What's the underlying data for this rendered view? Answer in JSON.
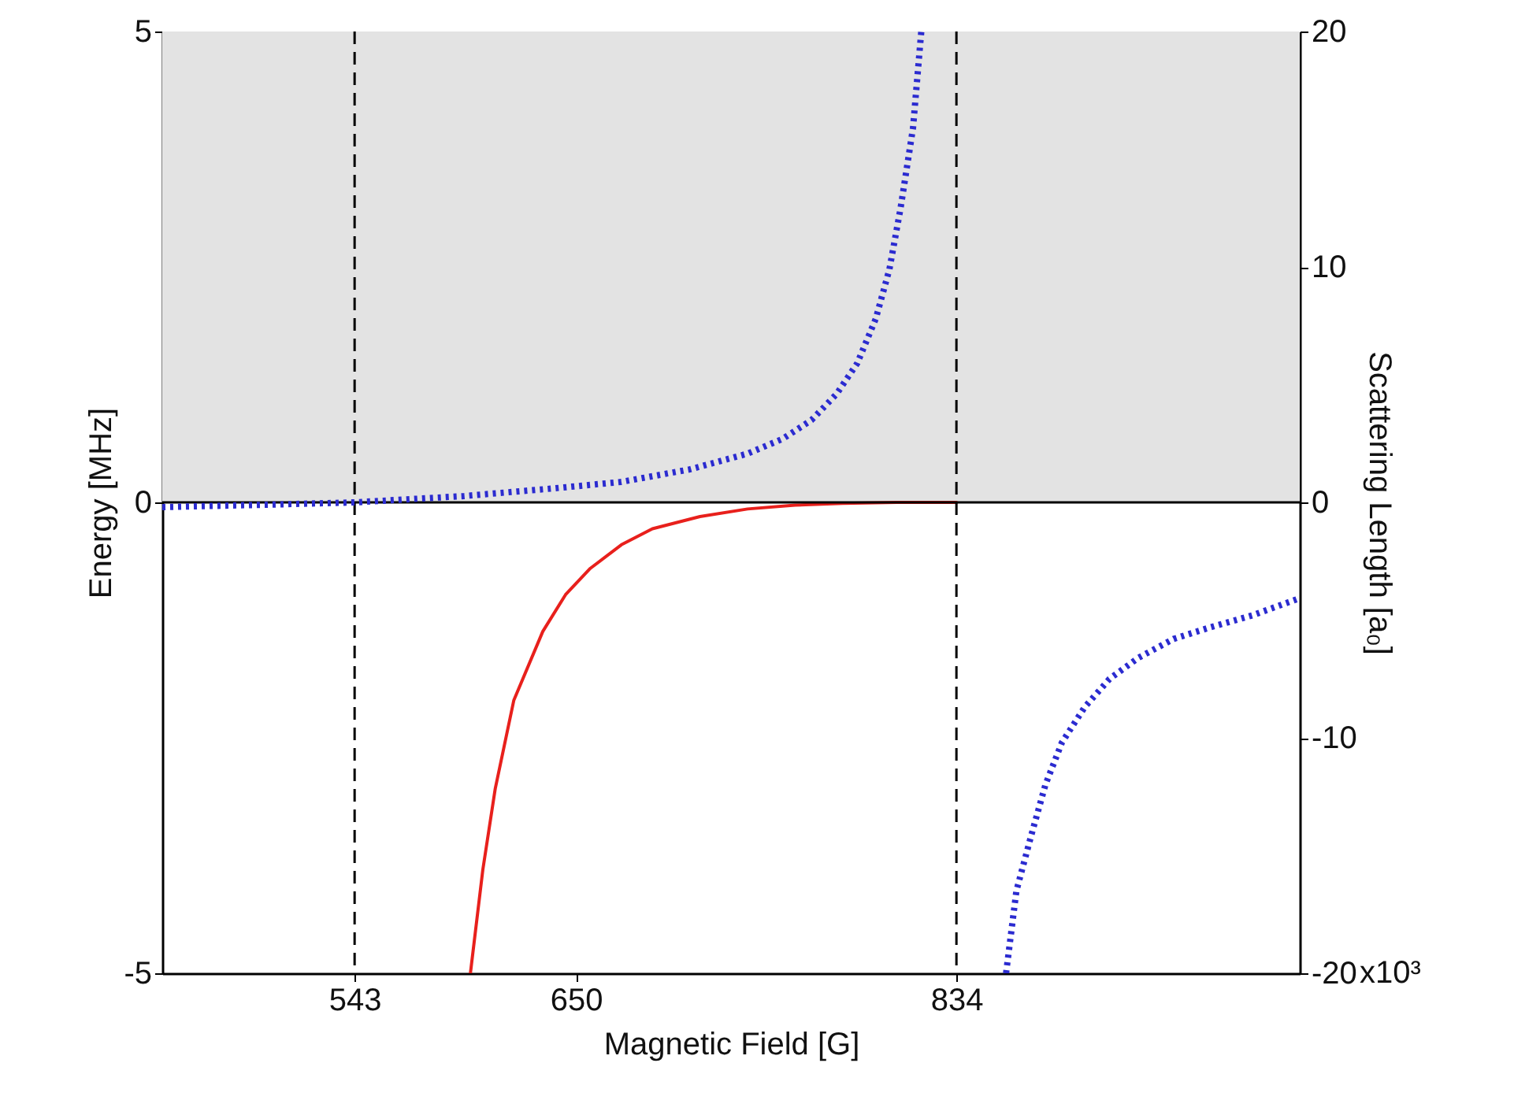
{
  "chart_data": {
    "type": "line",
    "xlabel": "Magnetic Field [G]",
    "ylabel": "Energy [MHz]",
    "y2label": "Scattering Length [a₀]",
    "xlim": [
      450,
      1000
    ],
    "xticks": [
      543,
      650,
      834
    ],
    "ylim": [
      -5,
      5
    ],
    "yticks": [
      -5,
      0,
      5
    ],
    "y2lim": [
      -20,
      20
    ],
    "y2ticks": [
      -20,
      -10,
      0,
      10,
      20
    ],
    "annotations": [
      "x10³"
    ],
    "grid": false,
    "bands": [
      {
        "axis": "y",
        "from": 0,
        "to": 5,
        "color": "#e3e3e3"
      }
    ],
    "ref_lines": [
      {
        "axis": "x",
        "value": 543,
        "line_style": "dashed",
        "color": "#000000"
      },
      {
        "axis": "x",
        "value": 834,
        "line_style": "dashed",
        "color": "#000000"
      },
      {
        "axis": "y",
        "value": 0,
        "line_style": "solid",
        "color": "#000000"
      }
    ],
    "series": [
      {
        "color": "#e8201c",
        "line_style": "solid",
        "x": [
          599,
          605,
          611,
          620,
          634,
          645,
          657,
          672,
          687,
          710,
          733,
          756,
          779,
          805,
          834
        ],
        "values": [
          -5,
          -3.9,
          -3.04,
          -2.1,
          -1.37,
          -0.98,
          -0.7,
          -0.45,
          -0.28,
          -0.15,
          -0.07,
          -0.03,
          -0.01,
          0,
          0
        ]
      },
      {
        "color": "#2b2bd0",
        "line_style": "dotted",
        "axis": "y2",
        "x": [
          450,
          500,
          543,
          596,
          640,
          672,
          705,
          733,
          750,
          764,
          776,
          786,
          795,
          801.6,
          807,
          813,
          817
        ],
        "values": [
          -0.2,
          -0.1,
          0,
          0.27,
          0.6,
          0.87,
          1.4,
          2.07,
          2.7,
          3.5,
          4.6,
          5.9,
          7.8,
          9.9,
          12.5,
          15.9,
          20
        ]
      },
      {
        "color": "#2b2bd0",
        "line_style": "dotted",
        "axis": "y2",
        "x": [
          858,
          863,
          870,
          877,
          885,
          896,
          908,
          922,
          939,
          957,
          977,
          999
        ],
        "values": [
          -20,
          -16.5,
          -14.2,
          -12,
          -10.2,
          -8.7,
          -7.5,
          -6.6,
          -5.8,
          -5.3,
          -4.8,
          -4.1
        ]
      }
    ]
  }
}
